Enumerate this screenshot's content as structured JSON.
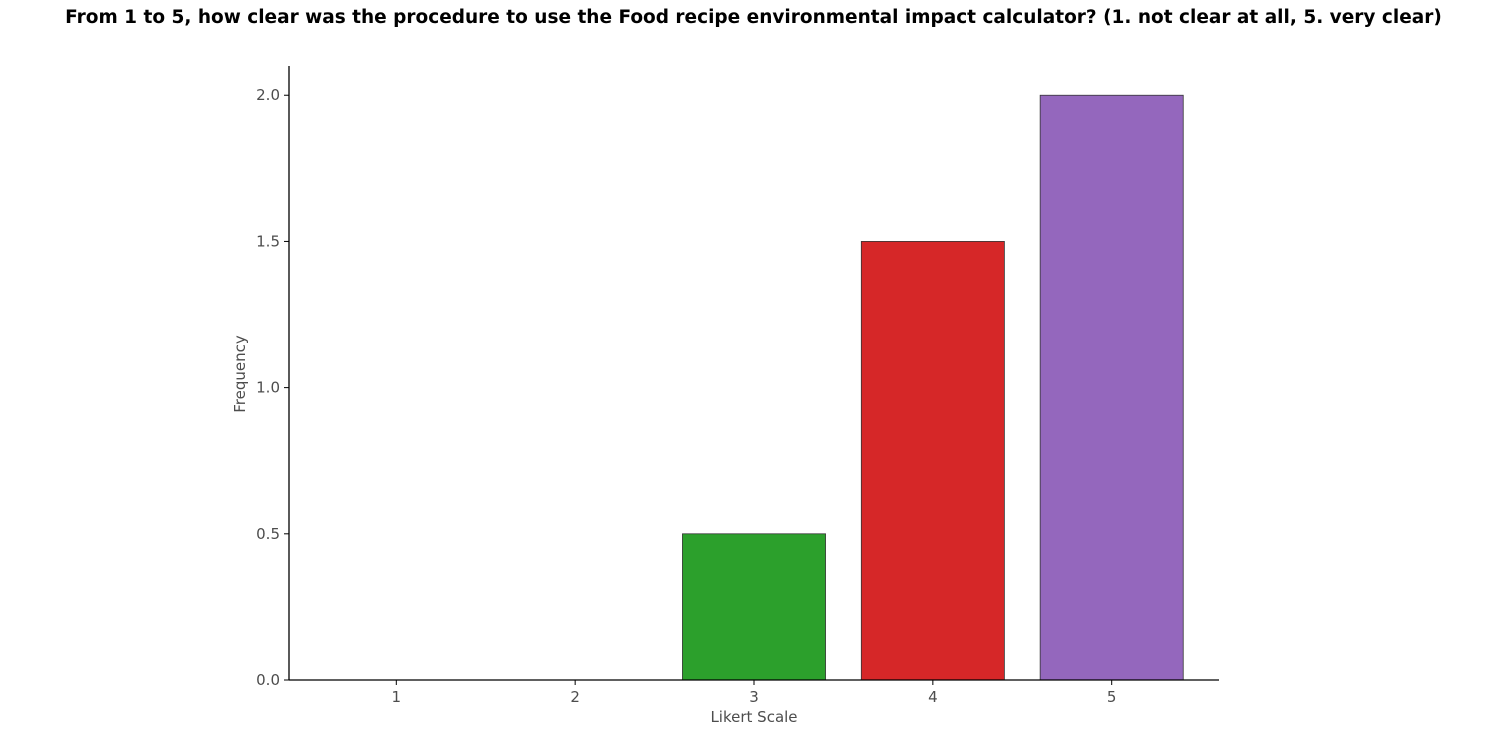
{
  "chart_data": {
    "type": "bar",
    "title": "From 1 to 5, how clear was the procedure to use the Food recipe environmental impact calculator? (1. not clear at all, 5. very clear)",
    "xlabel": "Likert Scale",
    "ylabel": "Frequency",
    "categories": [
      "1",
      "2",
      "3",
      "4",
      "5"
    ],
    "values": [
      0,
      0,
      0.5,
      1.5,
      2.0
    ],
    "colors": [
      "#1f77b4",
      "#ff7f0e",
      "#2ca02c",
      "#d62728",
      "#9467bd"
    ],
    "edge_color": "#333333",
    "ylim": [
      0,
      2.1
    ],
    "yticks": [
      0.0,
      0.5,
      1.0,
      1.5,
      2.0
    ],
    "ytick_labels": [
      "0.0",
      "0.5",
      "1.0",
      "1.5",
      "2.0"
    ],
    "grid": false,
    "legend": "none"
  }
}
